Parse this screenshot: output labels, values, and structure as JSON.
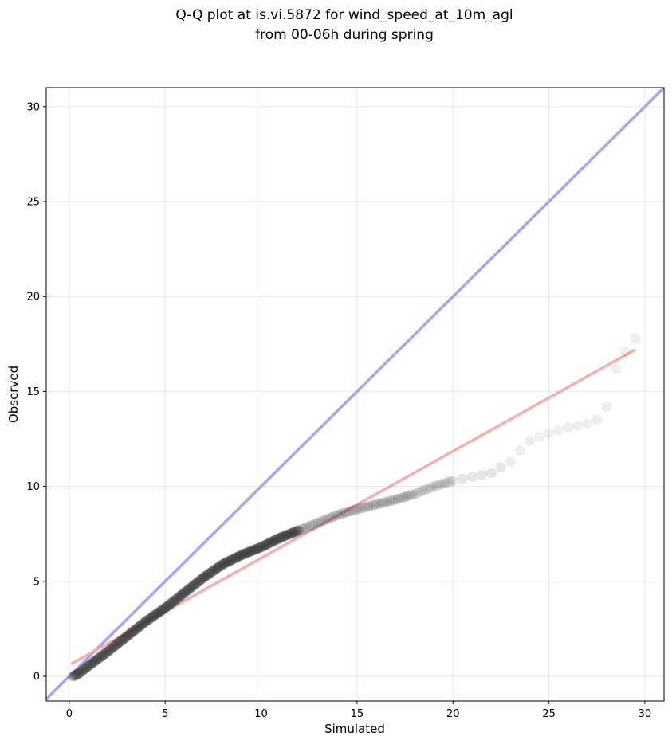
{
  "chart_data": {
    "type": "scatter",
    "title_lines": [
      "Q-Q plot at is.vi.5872 for wind_speed_at_10m_agl",
      "from 00-06h during spring"
    ],
    "xlabel": "Simulated",
    "ylabel": "Observed",
    "xlim": [
      -1.2,
      31
    ],
    "ylim": [
      -1.3,
      31
    ],
    "xticks": [
      0,
      5,
      10,
      15,
      20,
      25,
      30
    ],
    "yticks": [
      0,
      5,
      10,
      15,
      20,
      25,
      30
    ],
    "grid": true,
    "identity_line_color": "#a6a6ee",
    "fit_line": {
      "color": "#f3a6a6",
      "x": [
        0.1,
        29.5
      ],
      "y": [
        0.65,
        17.2
      ]
    },
    "point_color": "#333333",
    "quantile_anchors": {
      "x": [
        0.2,
        0.5,
        1.0,
        2.0,
        3.0,
        4.0,
        5.0,
        6.0,
        7.0,
        8.0,
        9.0,
        10.0,
        11.0,
        12.0,
        13.0,
        14.0,
        15.0,
        16.0,
        17.0,
        18.0,
        19.0,
        20.0,
        21.0,
        22.0,
        22.5,
        23.0,
        23.5,
        24.0,
        25.0,
        26.0,
        27.0,
        27.5,
        28.0,
        28.5,
        29.0,
        29.5
      ],
      "y": [
        0.0,
        0.15,
        0.55,
        1.3,
        2.1,
        2.9,
        3.6,
        4.4,
        5.2,
        5.9,
        6.4,
        6.8,
        7.3,
        7.7,
        8.1,
        8.5,
        8.8,
        9.05,
        9.3,
        9.6,
        10.0,
        10.3,
        10.5,
        10.7,
        11.0,
        11.3,
        11.9,
        12.4,
        12.8,
        13.1,
        13.3,
        13.5,
        14.2,
        16.2,
        17.1,
        17.8
      ]
    }
  }
}
